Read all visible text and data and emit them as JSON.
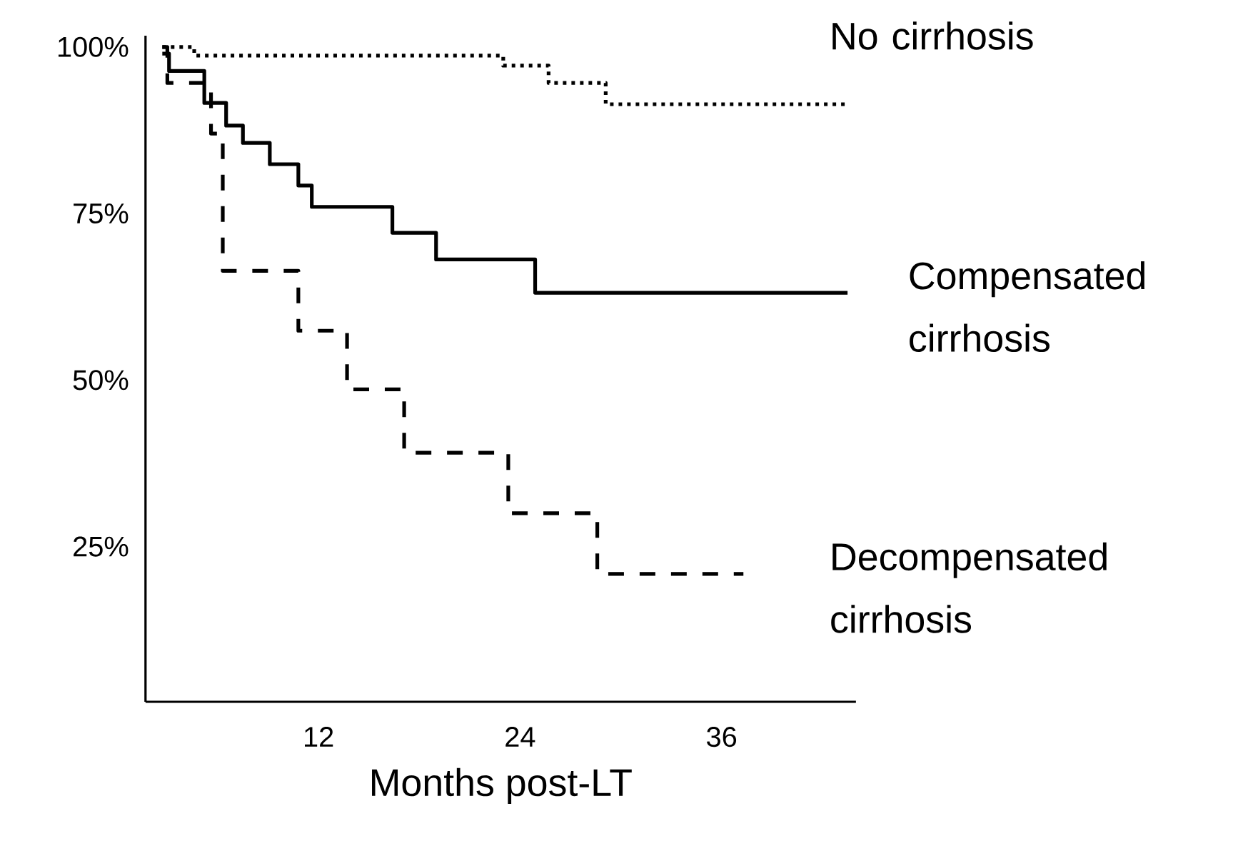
{
  "chart_data": {
    "type": "step",
    "xlabel": "Months post-LT",
    "xlim": [
      1.7,
      44
    ],
    "ylim": [
      1.7,
      101.7
    ],
    "xticks": [
      12,
      24,
      36
    ],
    "yticks": [
      {
        "value": 25,
        "label": "25%"
      },
      {
        "value": 50,
        "label": "50%"
      },
      {
        "value": 75,
        "label": "75%"
      },
      {
        "value": 100,
        "label": "100%"
      }
    ],
    "legend": false,
    "grid": false,
    "series": [
      {
        "name": "No cirrhosis",
        "color": "#000000",
        "line_style": "dotted",
        "x": [
          2.7,
          4.6,
          23.0,
          25.7,
          29.1,
          43.5
        ],
        "values": [
          100,
          98.7,
          97.2,
          94.6,
          91.4,
          91.4
        ]
      },
      {
        "name": "Compensated cirrhosis",
        "color": "#000000",
        "line_style": "solid",
        "x": [
          2.7,
          3.1,
          5.2,
          6.5,
          7.5,
          9.1,
          10.8,
          11.6,
          16.4,
          19.0,
          24.9,
          43.5
        ],
        "values": [
          99,
          96.4,
          91.6,
          88.2,
          85.6,
          82.4,
          79.2,
          76.0,
          72.1,
          68.1,
          63.1,
          63.1
        ]
      },
      {
        "name": "Decompensated cirrhosis",
        "color": "#000000",
        "line_style": "dashed",
        "x": [
          2.7,
          3.0,
          5.6,
          6.3,
          10.8,
          13.7,
          17.1,
          23.3,
          28.6,
          37.3
        ],
        "values": [
          100,
          94.6,
          87,
          66.4,
          57.4,
          48.6,
          39.1,
          30.0,
          20.9,
          20.9
        ]
      }
    ]
  }
}
